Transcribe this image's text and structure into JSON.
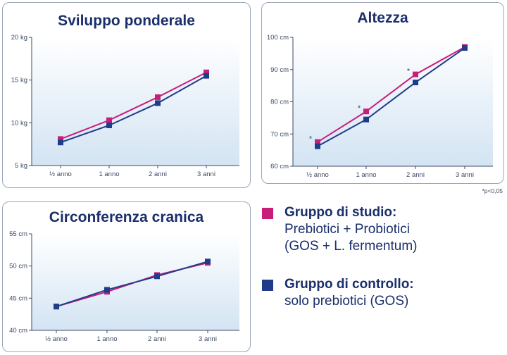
{
  "colors": {
    "study": "#c81e7a",
    "control": "#1f3c88",
    "title": "#1a2f6b",
    "bg_top": "#ffffff",
    "bg_bottom": "#d3e4f3"
  },
  "footnote": "*p<0,05",
  "legend": {
    "study": {
      "head": "Gruppo di studio:",
      "line1": "Prebiotici + Probiotici",
      "line2": "(GOS + L. fermentum)"
    },
    "control": {
      "head": "Gruppo di controllo:",
      "line1": "solo prebiotici (GOS)"
    }
  },
  "chart_data": [
    {
      "type": "line",
      "title": "Sviluppo ponderale",
      "categories": [
        "½ anno",
        "1 anno",
        "2 anni",
        "3 anni"
      ],
      "yticks": [
        "5 kg",
        "10 kg",
        "15 kg",
        "20 kg"
      ],
      "ylim": [
        5,
        20
      ],
      "series": [
        {
          "key": "study",
          "values": [
            8.1,
            10.3,
            13.0,
            15.9
          ]
        },
        {
          "key": "control",
          "values": [
            7.7,
            9.7,
            12.3,
            15.5
          ]
        }
      ],
      "significant": []
    },
    {
      "type": "line",
      "title": "Altezza",
      "categories": [
        "½ anno",
        "1 anno",
        "2 anni",
        "3 anni"
      ],
      "yticks": [
        "60 cm",
        "70 cm",
        "80 cm",
        "90 cm",
        "100 cm"
      ],
      "ylim": [
        60,
        100
      ],
      "series": [
        {
          "key": "study",
          "values": [
            67.5,
            77.0,
            88.5,
            97.0
          ]
        },
        {
          "key": "control",
          "values": [
            66.2,
            74.5,
            86.0,
            96.7
          ]
        }
      ],
      "significant": [
        0,
        1,
        2
      ]
    },
    {
      "type": "line",
      "title": "Circonferenza cranica",
      "categories": [
        "½ anno",
        "1 anno",
        "2 anni",
        "3 anni"
      ],
      "yticks": [
        "40 cm",
        "45 cm",
        "50 cm",
        "55 cm"
      ],
      "ylim": [
        40,
        55
      ],
      "series": [
        {
          "key": "study",
          "values": [
            43.7,
            46.0,
            48.6,
            50.5
          ]
        },
        {
          "key": "control",
          "values": [
            43.7,
            46.3,
            48.4,
            50.7
          ]
        }
      ],
      "significant": []
    }
  ]
}
